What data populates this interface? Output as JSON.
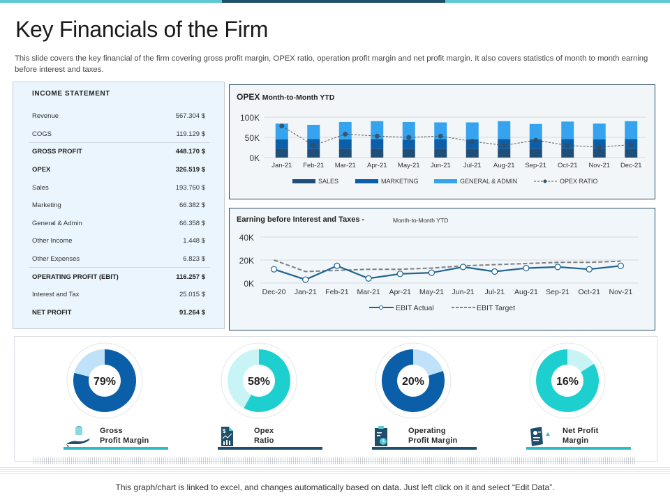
{
  "header": {
    "title": "Key Financials of the Firm",
    "subtitle": "This slide covers the key financial of the firm covering gross profit margin, OPEX ratio, operation profit margin and net profit margin. It also covers statistics of month to month earning before interest and taxes."
  },
  "colors": {
    "accent_teal": "#5cc8d4",
    "dark_navy": "#1f4e6b",
    "sales": "#1f4e79",
    "marketing": "#0b5ea8",
    "general_admin": "#35a3ee",
    "ebit_actual": "#1f6391",
    "ebit_target": "#7f7f7f",
    "donut_blue": "#0b5ea8",
    "donut_light_blue": "#bfe1fa",
    "donut_teal": "#1ecfcf",
    "donut_light_teal": "#c8f4f6"
  },
  "income_statement": {
    "heading": "INCOME STATEMENT",
    "rows": [
      {
        "label": "Revenue",
        "value": "567.304 $",
        "bold": false
      },
      {
        "label": "COGS",
        "value": "119.129 $",
        "bold": false
      },
      {
        "label": "GROSS PROFIT",
        "value": "448.170 $",
        "bold": true
      },
      {
        "label": "OPEX",
        "value": "326.519 $",
        "bold": true
      },
      {
        "label": "Sales",
        "value": "193.760 $",
        "bold": false
      },
      {
        "label": "Marketing",
        "value": "66.382 $",
        "bold": false
      },
      {
        "label": "General & Admin",
        "value": "66.358 $",
        "bold": false
      },
      {
        "label": "Other Income",
        "value": "1.448 $",
        "bold": false
      },
      {
        "label": "Other Expenses",
        "value": "6.823 $",
        "bold": false
      },
      {
        "label": "OPERATING PROFIT (EBIT)",
        "value": "116.257 $",
        "bold": true
      },
      {
        "label": "Interest and Tax",
        "value": "25.015 $",
        "bold": false
      },
      {
        "label": "NET PROFIT",
        "value": "91.264 $",
        "bold": true
      }
    ]
  },
  "opex_chart_titles": {
    "bold": "OPEX",
    "rest": "Month-to-Month  YTD"
  },
  "ebit_chart_titles": {
    "main": "Earning before Interest and Taxes -",
    "sub": "Month-to-Month YTD"
  },
  "chart_data": [
    {
      "type": "bar",
      "title": "OPEX Month-to-Month YTD",
      "stacked": true,
      "categories": [
        "Jan-21",
        "Feb-21",
        "Mar-21",
        "Apr-21",
        "May-21",
        "Jun-21",
        "Jul-21",
        "Aug-21",
        "Sep-21",
        "Oct-21",
        "Nov-21",
        "Dec-21"
      ],
      "series": [
        {
          "name": "SALES",
          "values": [
            22,
            22,
            22,
            22,
            22,
            22,
            22,
            22,
            22,
            22,
            22,
            22
          ]
        },
        {
          "name": "MARKETING",
          "values": [
            23,
            24,
            23,
            24,
            22,
            24,
            23,
            24,
            23,
            24,
            23,
            24
          ]
        },
        {
          "name": "GENERAL & ADMIN",
          "values": [
            39,
            35,
            43,
            44,
            44,
            41,
            42,
            44,
            38,
            43,
            39,
            44
          ]
        }
      ],
      "line_series": {
        "name": "OPEX  RATIO",
        "values": [
          78,
          30,
          58,
          53,
          50,
          53,
          40,
          30,
          43,
          30,
          26,
          32
        ]
      },
      "yticks": [
        "0K",
        "50K",
        "100K"
      ],
      "ylim": [
        0,
        100
      ],
      "grid": true,
      "legend": "bottom"
    },
    {
      "type": "line",
      "title": "Earning before Interest and Taxes - Month-to-Month YTD",
      "categories": [
        "Dec-20",
        "Jan-21",
        "Feb-21",
        "Mar-21",
        "Apr-21",
        "May-21",
        "Jun-21",
        "Jul-21",
        "Aug-21",
        "Sep-21",
        "Oct-21",
        "Nov-21"
      ],
      "series": [
        {
          "name": "EBIT Actual",
          "values": [
            12,
            3,
            15,
            4,
            8,
            9,
            14,
            10,
            13,
            14,
            12,
            15
          ]
        },
        {
          "name": "EBIT Target",
          "values": [
            20,
            10,
            11,
            12,
            12,
            13,
            15,
            16,
            17,
            18,
            18,
            19
          ]
        }
      ],
      "yticks": [
        "0K",
        "20K",
        "40K"
      ],
      "ylim": [
        0,
        40
      ],
      "grid": true,
      "legend": "bottom"
    }
  ],
  "kpis": [
    {
      "value": 79,
      "label": "79%",
      "line1": "Gross",
      "line2": "Profit Margin",
      "icon": "hand-document-icon",
      "scheme": "blue",
      "underline": "#2bbcc4"
    },
    {
      "value": 58,
      "label": "58%",
      "line1": "Opex",
      "line2": "Ratio",
      "icon": "dollar-chart-document-icon",
      "scheme": "teal",
      "underline": "#1f4e6b"
    },
    {
      "value": 20,
      "label": "20%",
      "line1": "Operating",
      "line2": "Profit Margin",
      "icon": "clipboard-clock-icon",
      "scheme": "blue_inv",
      "underline": "#1f4e6b"
    },
    {
      "value": 16,
      "label": "16%",
      "line1": "Net Profit",
      "line2": "Margin",
      "icon": "report-document-icon",
      "scheme": "teal_inv",
      "underline": "#2bbcc4"
    }
  ],
  "footer": "This graph/chart is linked to excel, and changes automatically based on data. Just left click on it and select “Edit Data”."
}
